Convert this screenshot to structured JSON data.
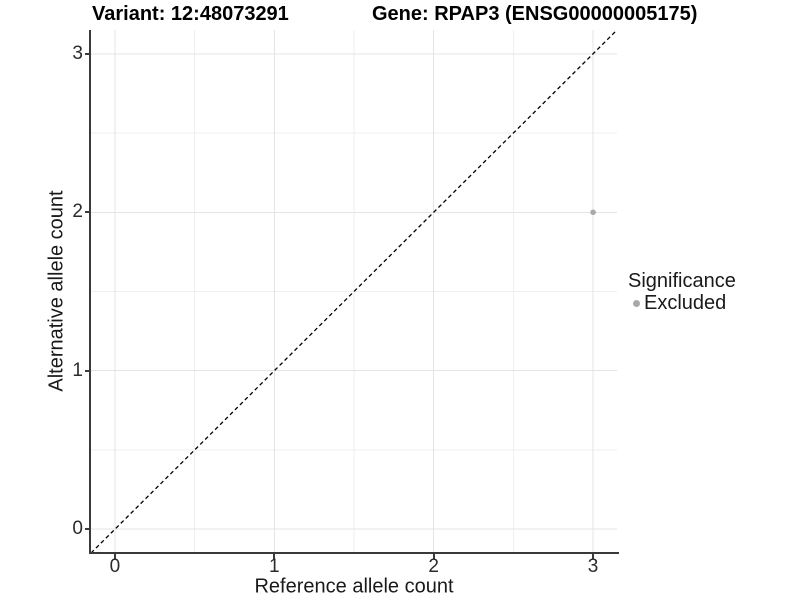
{
  "titles": {
    "variant": "Variant: 12:48073291",
    "gene": "Gene: RPAP3 (ENSG00000005175)"
  },
  "axes": {
    "x": {
      "label": "Reference allele count",
      "ticks": [
        "0",
        "1",
        "2",
        "3"
      ]
    },
    "y": {
      "label": "Alternative allele count",
      "ticks": [
        "0",
        "1",
        "2",
        "3"
      ]
    }
  },
  "legend": {
    "title": "Significance",
    "items": [
      {
        "label": "Excluded",
        "color": "#a9a9a9"
      }
    ]
  },
  "colors": {
    "background": "#ffffff",
    "axis_line": "#3a3a3a",
    "grid_major": "#e4e4e4",
    "grid_minor": "#efefef",
    "point": "#a9a9a9",
    "reference_line": "#000000"
  },
  "chart_data": {
    "type": "scatter",
    "title": "Variant: 12:48073291 | Gene: RPAP3 (ENSG00000005175)",
    "xlabel": "Reference allele count",
    "ylabel": "Alternative allele count",
    "xlim": [
      -0.15,
      3.15
    ],
    "ylim": [
      -0.15,
      3.15
    ],
    "x_ticks": [
      0,
      1,
      2,
      3
    ],
    "y_ticks": [
      0,
      1,
      2,
      3
    ],
    "x_minor_ticks": [
      0.5,
      1.5,
      2.5
    ],
    "y_minor_ticks": [
      0.5,
      1.5,
      2.5
    ],
    "grid": "major+minor",
    "legend_position": "right",
    "series": [
      {
        "name": "Excluded",
        "marker": "circle",
        "color": "#a9a9a9",
        "points": [
          {
            "x": 3,
            "y": 2
          }
        ]
      }
    ],
    "reference_line": {
      "kind": "identity y=x",
      "style": "dashed",
      "color": "#000000"
    }
  }
}
